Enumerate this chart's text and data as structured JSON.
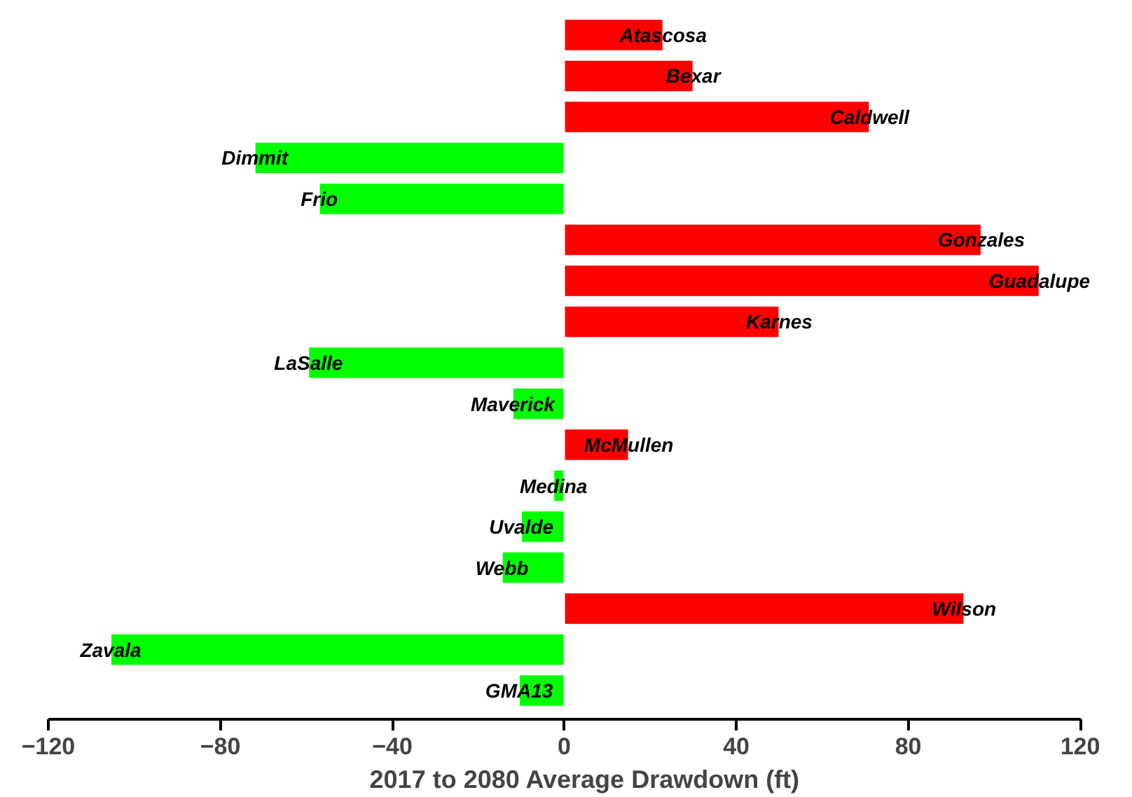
{
  "chart_data": {
    "type": "bar",
    "orientation": "horizontal",
    "xlabel": "2017 to 2080 Average Drawdown (ft)",
    "categories": [
      "Atascosa",
      "Bexar",
      "Caldwell",
      "Dimmit",
      "Frio",
      "Gonzales",
      "Guadalupe",
      "Karnes",
      "LaSalle",
      "Maverick",
      "McMullen",
      "Medina",
      "Uvalde",
      "Webb",
      "Wilson",
      "Zavala",
      "GMA13"
    ],
    "values": [
      23,
      30,
      71,
      -72,
      -57,
      97,
      110.5,
      50,
      -59.5,
      -12,
      15,
      -2.5,
      -10,
      -14.5,
      93,
      -105.5,
      -10.5
    ],
    "colors": [
      "#ff0000",
      "#ff0000",
      "#ff0000",
      "#00ff00",
      "#00ff00",
      "#ff0000",
      "#ff0000",
      "#ff0000",
      "#00ff00",
      "#00ff00",
      "#ff0000",
      "#00ff00",
      "#00ff00",
      "#00ff00",
      "#ff0000",
      "#00ff00",
      "#00ff00"
    ],
    "xlim": [
      -120,
      120
    ],
    "xticks": [
      -120,
      -80,
      -40,
      0,
      40,
      80,
      120
    ],
    "tick_labels": "x",
    "grid": false
  }
}
